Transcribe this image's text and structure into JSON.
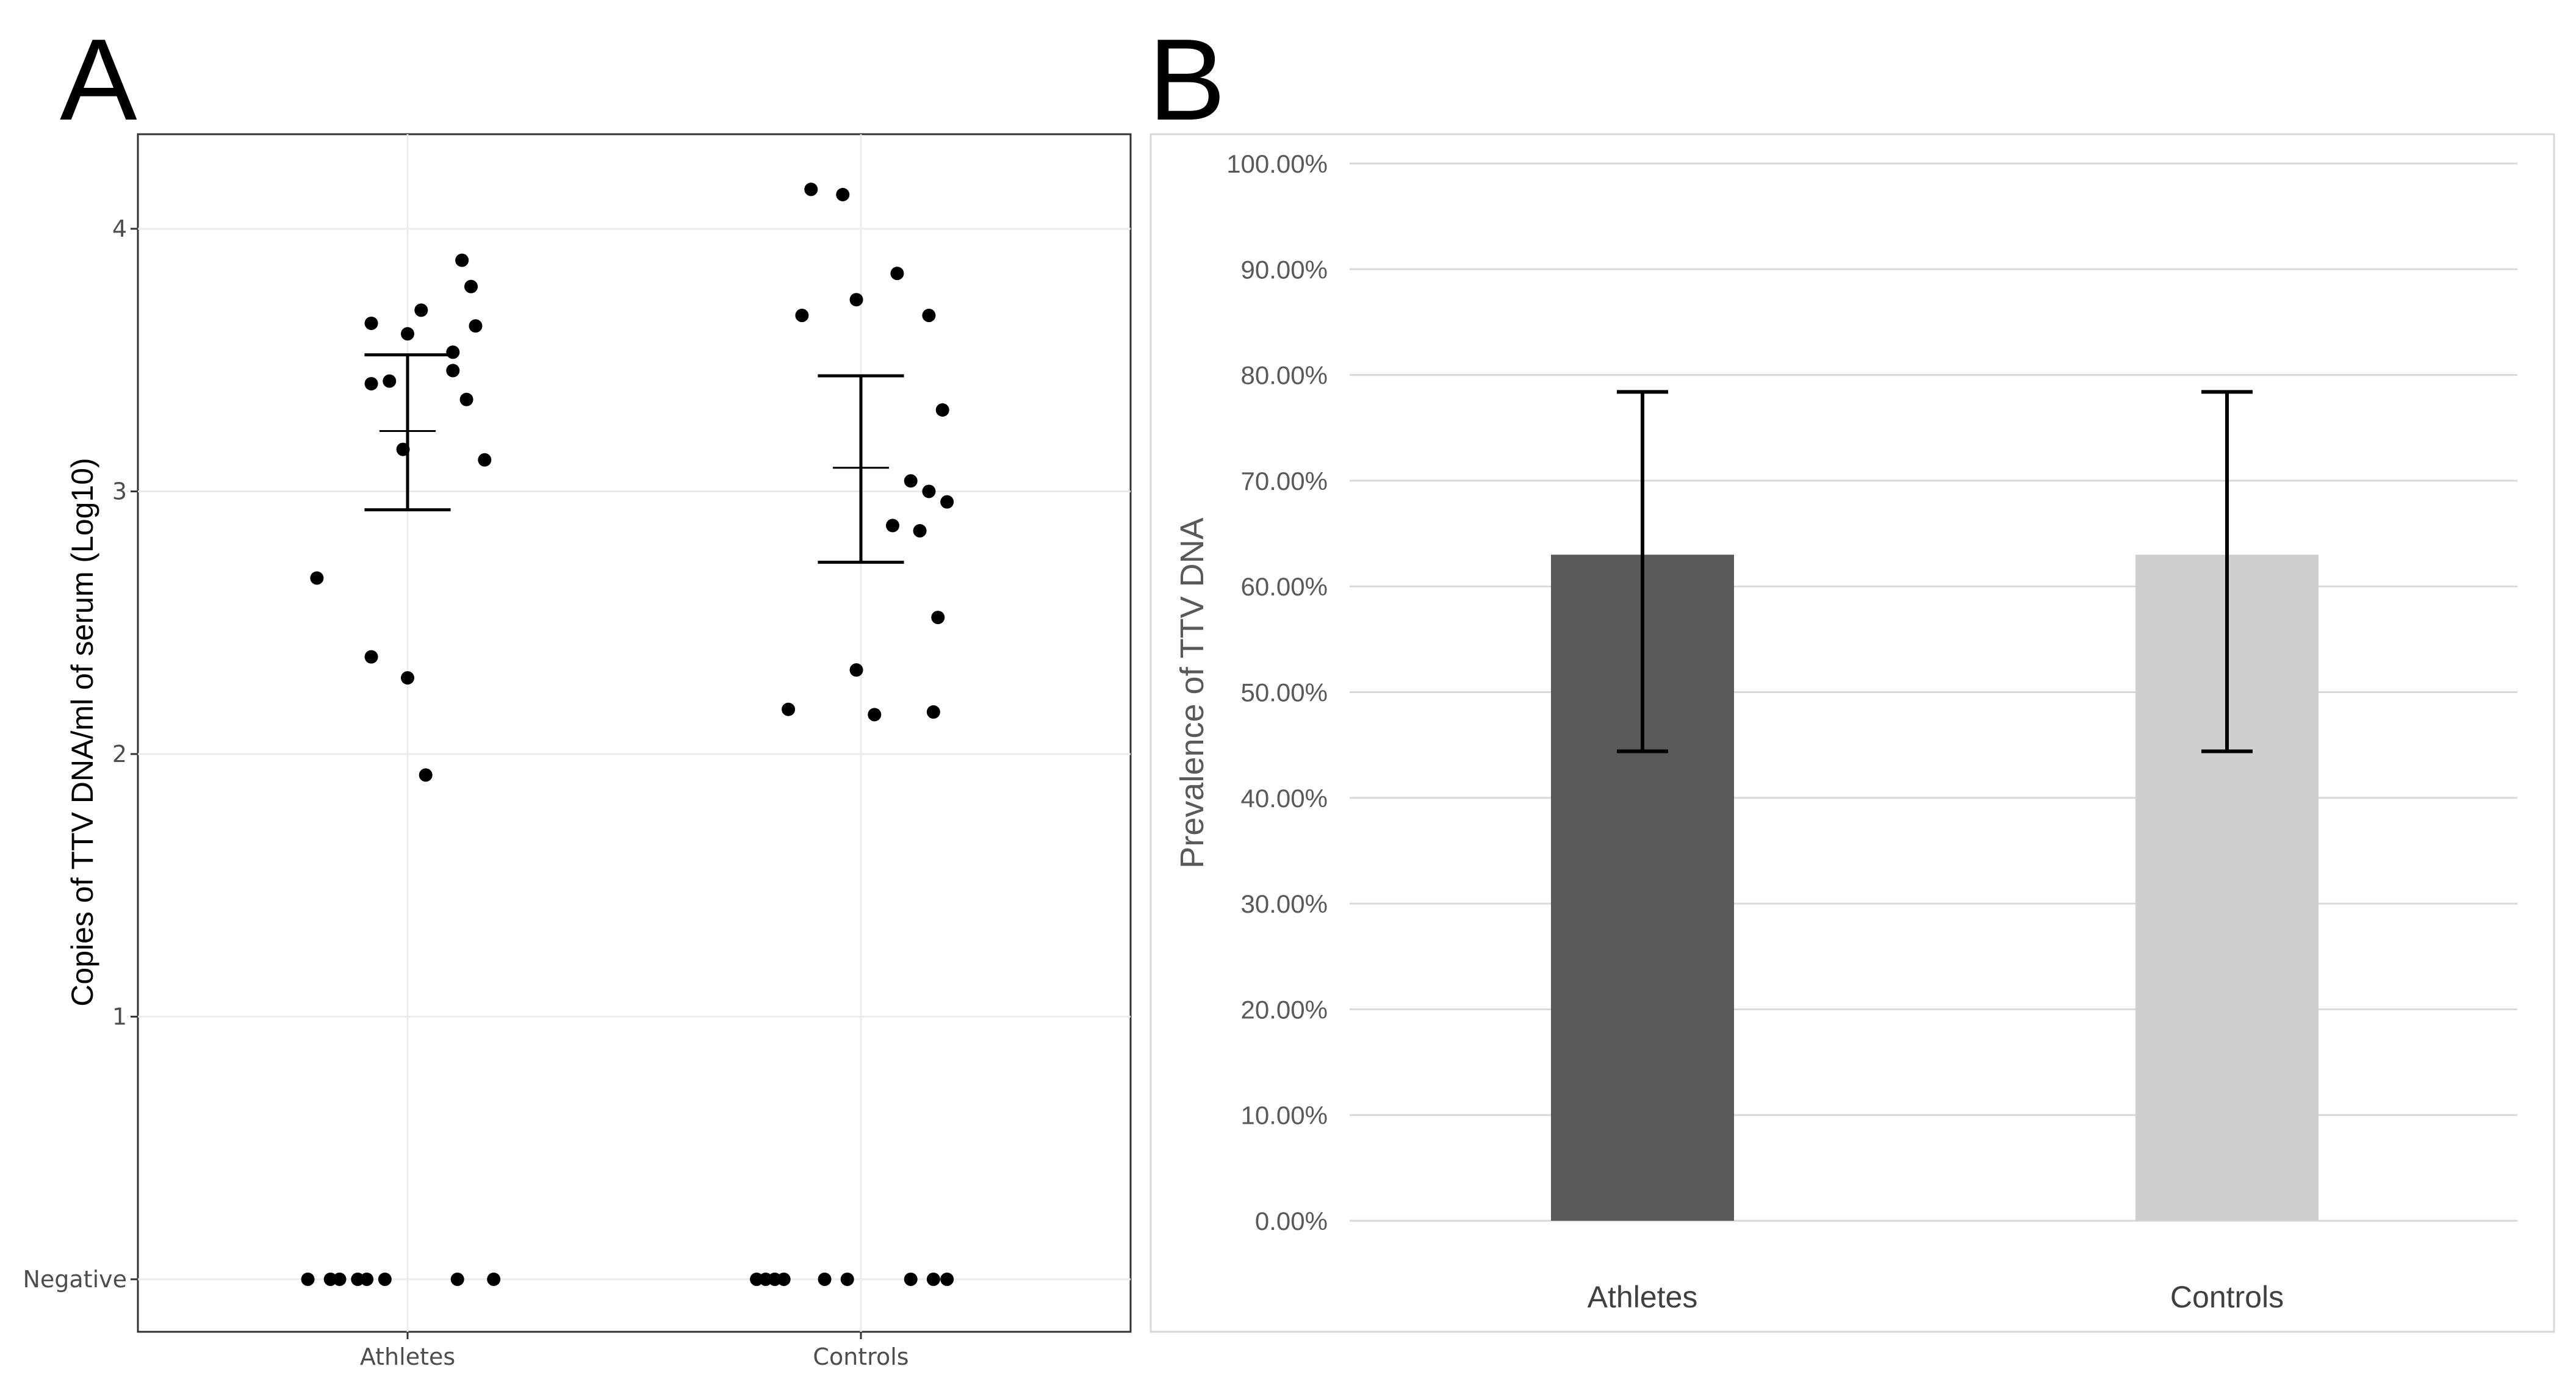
{
  "panels": {
    "a_label": "A",
    "b_label": "B"
  },
  "colors": {
    "points": "#000000",
    "grid_a": "#ebebeb",
    "grid_b": "#d9d9d9",
    "athletes_bar": "#595959",
    "controls_bar": "#d0cece"
  },
  "chart_data": [
    {
      "type": "scatter",
      "panel": "A",
      "title": "",
      "xlabel": "",
      "ylabel": "Copies of TTV  DNA/ml of serum (Log10)",
      "categories": [
        "Athletes",
        "Controls"
      ],
      "y_ticks": [
        {
          "value": 0,
          "label": "Negative"
        },
        {
          "value": 1,
          "label": "1"
        },
        {
          "value": 2,
          "label": "2"
        },
        {
          "value": 3,
          "label": "3"
        },
        {
          "value": 4,
          "label": "4"
        }
      ],
      "ylim": [
        -0.2,
        4.36
      ],
      "grid": true,
      "series": [
        {
          "name": "Athletes",
          "points": [
            {
              "offset": -0.2,
              "y": 2.67
            },
            {
              "offset": -0.08,
              "y": 2.37
            },
            {
              "offset": 0.0,
              "y": 2.29
            },
            {
              "offset": 0.04,
              "y": 1.92
            },
            {
              "offset": -0.01,
              "y": 3.16
            },
            {
              "offset": 0.17,
              "y": 3.12
            },
            {
              "offset": -0.08,
              "y": 3.41
            },
            {
              "offset": -0.04,
              "y": 3.42
            },
            {
              "offset": 0.13,
              "y": 3.35
            },
            {
              "offset": 0.1,
              "y": 3.46
            },
            {
              "offset": 0.1,
              "y": 3.53
            },
            {
              "offset": 0.0,
              "y": 3.6
            },
            {
              "offset": -0.08,
              "y": 3.64
            },
            {
              "offset": 0.15,
              "y": 3.63
            },
            {
              "offset": 0.03,
              "y": 3.69
            },
            {
              "offset": 0.14,
              "y": 3.78
            },
            {
              "offset": 0.12,
              "y": 3.88
            },
            {
              "offset": -0.22,
              "y": 0
            },
            {
              "offset": -0.17,
              "y": 0
            },
            {
              "offset": -0.15,
              "y": 0
            },
            {
              "offset": -0.11,
              "y": 0
            },
            {
              "offset": -0.09,
              "y": 0
            },
            {
              "offset": -0.05,
              "y": 0
            },
            {
              "offset": 0.11,
              "y": 0
            },
            {
              "offset": 0.19,
              "y": 0
            }
          ],
          "mean": 3.23,
          "error_low": 2.93,
          "error_high": 3.52
        },
        {
          "name": "Controls",
          "points": [
            {
              "offset": -0.11,
              "y": 4.15
            },
            {
              "offset": -0.04,
              "y": 4.13
            },
            {
              "offset": -0.13,
              "y": 3.67
            },
            {
              "offset": -0.01,
              "y": 3.73
            },
            {
              "offset": 0.08,
              "y": 3.83
            },
            {
              "offset": 0.15,
              "y": 3.67
            },
            {
              "offset": 0.18,
              "y": 3.31
            },
            {
              "offset": 0.11,
              "y": 3.04
            },
            {
              "offset": 0.15,
              "y": 3.0
            },
            {
              "offset": 0.19,
              "y": 2.96
            },
            {
              "offset": 0.07,
              "y": 2.87
            },
            {
              "offset": 0.13,
              "y": 2.85
            },
            {
              "offset": 0.17,
              "y": 2.52
            },
            {
              "offset": -0.01,
              "y": 2.32
            },
            {
              "offset": -0.16,
              "y": 2.17
            },
            {
              "offset": 0.03,
              "y": 2.15
            },
            {
              "offset": 0.16,
              "y": 2.16
            },
            {
              "offset": -0.23,
              "y": 0
            },
            {
              "offset": -0.21,
              "y": 0
            },
            {
              "offset": -0.19,
              "y": 0
            },
            {
              "offset": -0.17,
              "y": 0
            },
            {
              "offset": -0.08,
              "y": 0
            },
            {
              "offset": -0.03,
              "y": 0
            },
            {
              "offset": 0.11,
              "y": 0
            },
            {
              "offset": 0.16,
              "y": 0
            },
            {
              "offset": 0.19,
              "y": 0
            }
          ],
          "mean": 3.09,
          "error_low": 2.73,
          "error_high": 3.44
        }
      ]
    },
    {
      "type": "bar",
      "panel": "B",
      "title": "",
      "xlabel": "",
      "ylabel": "Prevalence of TTV DNA",
      "categories": [
        "Athletes",
        "Controls"
      ],
      "values": [
        63.0,
        63.0
      ],
      "error_low": [
        44.4,
        44.4
      ],
      "error_high": [
        78.4,
        78.4
      ],
      "ylim": [
        0,
        100
      ],
      "y_ticks": [
        0,
        10,
        20,
        30,
        40,
        50,
        60,
        70,
        80,
        90,
        100
      ],
      "y_tick_labels": [
        "0.00%",
        "10.00%",
        "20.00%",
        "30.00%",
        "40.00%",
        "50.00%",
        "60.00%",
        "70.00%",
        "80.00%",
        "90.00%",
        "100.00%"
      ],
      "grid": true
    }
  ]
}
